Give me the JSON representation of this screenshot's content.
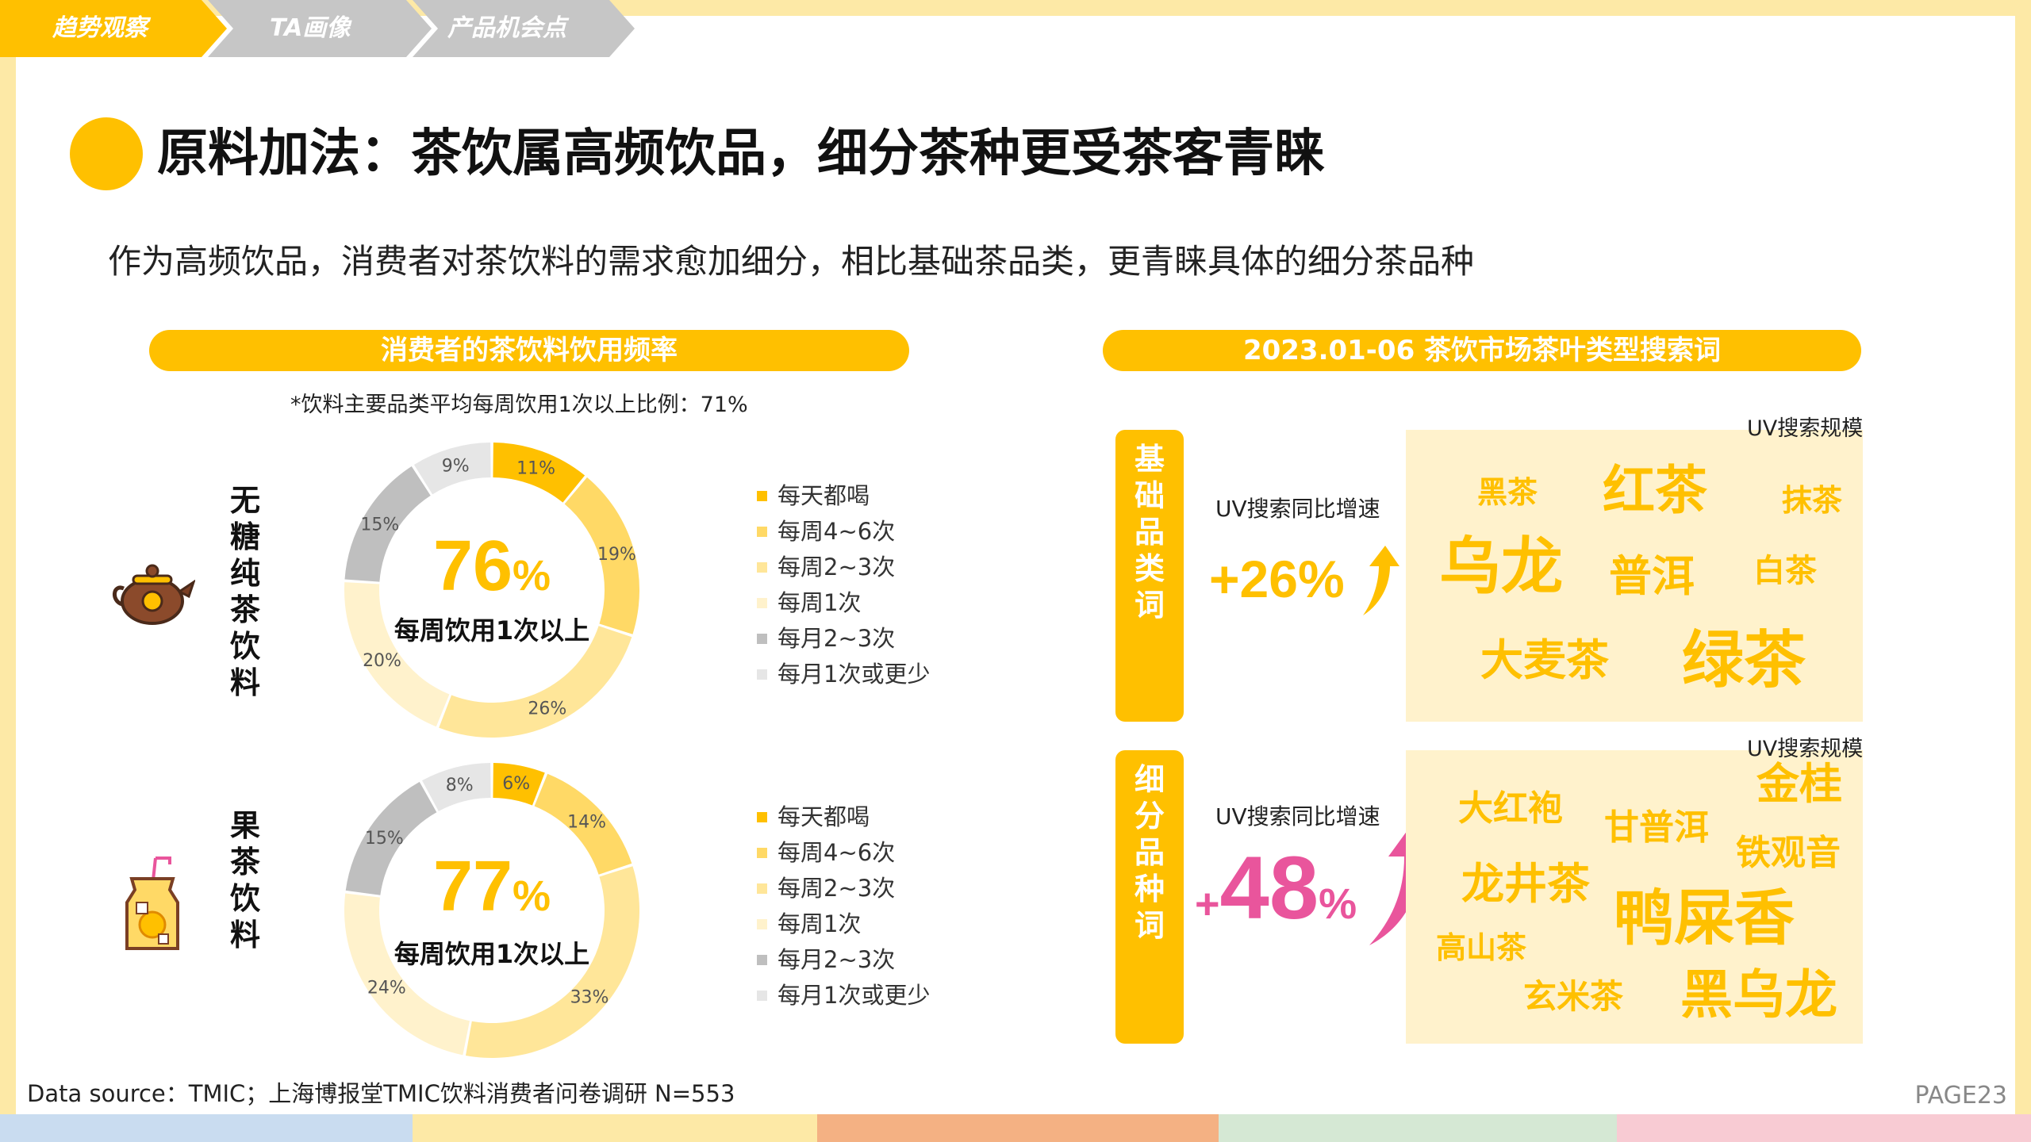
{
  "tabs": [
    "趋势观察",
    "TA画像",
    "产品机会点"
  ],
  "colors": {
    "accent": "#ffc000",
    "accent_dark": "#f5b400",
    "pink": "#e9559c",
    "tab_grey": "#c6c6c6",
    "cloud_bg": "#fff2cc"
  },
  "title": "原料加法：茶饮属高频饮品，细分茶种更受茶客青睐",
  "subtitle": "作为高频饮品，消费者对茶饮料的需求愈加细分，相比基础茶品类，更青睐具体的细分茶品种",
  "left_panel": {
    "header": "消费者的茶饮料饮用频率",
    "note": "*饮料主要品类平均每周饮用1次以上比例：71%"
  },
  "right_panel": {
    "header": "2023.01-06 茶饮市场茶叶类型搜索词"
  },
  "chart_data": [
    {
      "type": "pie",
      "name": "无糖纯茶饮料",
      "icon": "teapot-icon",
      "center_value": "76",
      "center_unit": "%",
      "center_label": "每周饮用1次以上",
      "categories": [
        "每天都喝",
        "每周4~6次",
        "每周2~3次",
        "每周1次",
        "每月2~3次",
        "每月1次或更少"
      ],
      "values": [
        11,
        19,
        26,
        20,
        15,
        9
      ],
      "labels": [
        "11%",
        "19%",
        "26%",
        "20%",
        "15%",
        "9%"
      ],
      "colors": [
        "#ffc000",
        "#ffd966",
        "#ffe699",
        "#fff2cc",
        "#bfbfbf",
        "#e6e6e6"
      ]
    },
    {
      "type": "pie",
      "name": "果茶饮料",
      "icon": "fruit-tea-icon",
      "center_value": "77",
      "center_unit": "%",
      "center_label": "每周饮用1次以上",
      "categories": [
        "每天都喝",
        "每周4~6次",
        "每周2~3次",
        "每周1次",
        "每月2~3次",
        "每月1次或更少"
      ],
      "values": [
        6,
        14,
        33,
        24,
        15,
        8
      ],
      "labels": [
        "6%",
        "14%",
        "33%",
        "24%",
        "15%",
        "8%"
      ],
      "colors": [
        "#ffc000",
        "#ffd966",
        "#ffe699",
        "#fff2cc",
        "#bfbfbf",
        "#e6e6e6"
      ]
    }
  ],
  "search_groups": [
    {
      "label": "基础品类词",
      "growth_label": "UV搜索同比增速",
      "growth_value": "+26%",
      "uv_scale_label": "UV搜索规模",
      "words": [
        "黑茶",
        "红茶",
        "抹茶",
        "乌龙",
        "普洱",
        "白茶",
        "大麦茶",
        "绿茶"
      ]
    },
    {
      "label": "细分品种词",
      "growth_label": "UV搜索同比增速",
      "growth_sign": "+",
      "growth_number": "48",
      "growth_unit": "%",
      "uv_scale_label": "UV搜索规模",
      "words": [
        "金桂",
        "大红袍",
        "甘普洱",
        "铁观音",
        "龙井茶",
        "鸭屎香",
        "高山茶",
        "玄米茶",
        "黑乌龙"
      ]
    }
  ],
  "footer": {
    "source": "Data source：TMIC；上海博报堂TMIC饮料消费者问卷调研 N=553",
    "page": "PAGE23"
  }
}
